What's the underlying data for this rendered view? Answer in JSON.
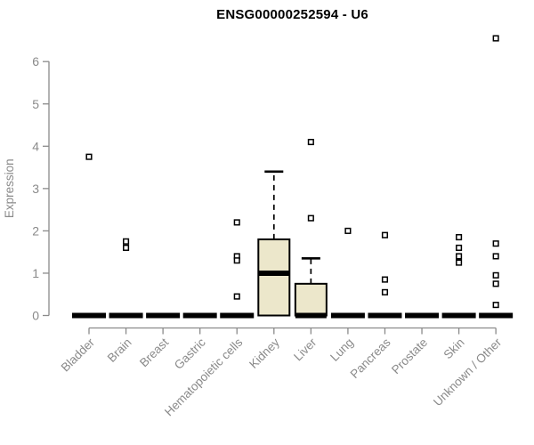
{
  "title": "ENSG00000252594 - U6",
  "chart_data": {
    "type": "boxplot",
    "title": "ENSG00000252594 - U6",
    "xlabel": "",
    "ylabel": "Expression",
    "ylim": [
      0,
      6
    ],
    "yticks": [
      0,
      1,
      2,
      3,
      4,
      5,
      6
    ],
    "grid": false,
    "legend": "none",
    "categories": [
      "Bladder",
      "Brain",
      "Breast",
      "Gastric",
      "Hematopoietic cells",
      "Kidney",
      "Liver",
      "Lung",
      "Pancreas",
      "Prostate",
      "Skin",
      "Unknown / Other"
    ],
    "series": [
      {
        "name": "Bladder",
        "median": 0,
        "q1": 0,
        "q3": 0,
        "whisker_low": 0,
        "whisker_high": 0,
        "outliers": [
          3.75
        ]
      },
      {
        "name": "Brain",
        "median": 0,
        "q1": 0,
        "q3": 0,
        "whisker_low": 0,
        "whisker_high": 0,
        "outliers": [
          1.75,
          1.6
        ]
      },
      {
        "name": "Breast",
        "median": 0,
        "q1": 0,
        "q3": 0,
        "whisker_low": 0,
        "whisker_high": 0,
        "outliers": []
      },
      {
        "name": "Gastric",
        "median": 0,
        "q1": 0,
        "q3": 0,
        "whisker_low": 0,
        "whisker_high": 0,
        "outliers": []
      },
      {
        "name": "Hematopoietic cells",
        "median": 0,
        "q1": 0,
        "q3": 0,
        "whisker_low": 0,
        "whisker_high": 0,
        "outliers": [
          2.2,
          1.4,
          1.3,
          0.45
        ]
      },
      {
        "name": "Kidney",
        "median": 1.0,
        "q1": 0,
        "q3": 1.8,
        "whisker_low": 0,
        "whisker_high": 3.4,
        "outliers": []
      },
      {
        "name": "Liver",
        "median": 0,
        "q1": 0,
        "q3": 0.75,
        "whisker_low": 0,
        "whisker_high": 1.35,
        "outliers": [
          4.1,
          2.3
        ]
      },
      {
        "name": "Lung",
        "median": 0,
        "q1": 0,
        "q3": 0,
        "whisker_low": 0,
        "whisker_high": 0,
        "outliers": [
          2.0
        ]
      },
      {
        "name": "Pancreas",
        "median": 0,
        "q1": 0,
        "q3": 0,
        "whisker_low": 0,
        "whisker_high": 0,
        "outliers": [
          1.9,
          0.85,
          0.55
        ]
      },
      {
        "name": "Prostate",
        "median": 0,
        "q1": 0,
        "q3": 0,
        "whisker_low": 0,
        "whisker_high": 0,
        "outliers": []
      },
      {
        "name": "Skin",
        "median": 0,
        "q1": 0,
        "q3": 0,
        "whisker_low": 0,
        "whisker_high": 0,
        "outliers": [
          1.85,
          1.6,
          1.4,
          1.25
        ]
      },
      {
        "name": "Unknown / Other",
        "median": 0,
        "q1": 0,
        "q3": 0,
        "whisker_low": 0,
        "whisker_high": 0,
        "outliers": [
          6.55,
          1.7,
          1.4,
          0.95,
          0.75,
          0.25
        ]
      }
    ],
    "colors": {
      "box_fill": "#ECE7CB",
      "box_border": "#000000",
      "median": "#000000",
      "whisker": "#000000",
      "outlier_fill": "#FFFFFF",
      "outlier_border": "#000000",
      "axis": "#8A8A8A",
      "text": "#8A8A8A",
      "title": "#000000",
      "background": "#FFFFFF"
    }
  }
}
